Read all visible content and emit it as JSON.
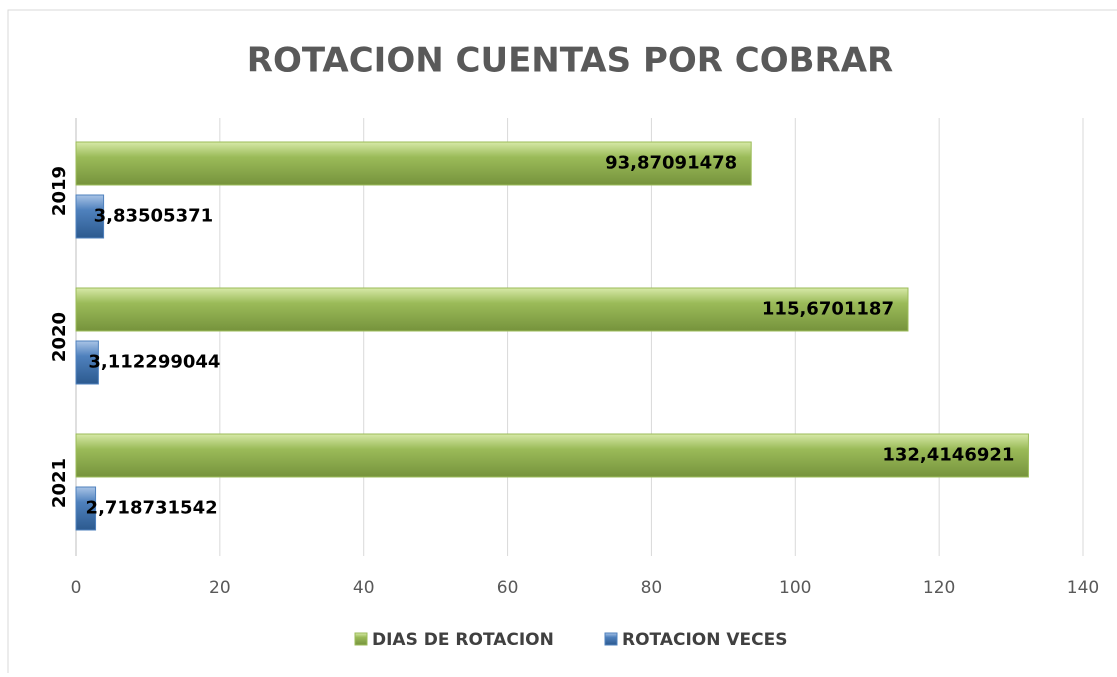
{
  "chart_data": {
    "type": "bar",
    "orientation": "horizontal",
    "title": "ROTACION CUENTAS POR COBRAR",
    "categories": [
      "2019",
      "2020",
      "2021"
    ],
    "series": [
      {
        "name": "DIAS DE ROTACION",
        "color": "#9bbb59",
        "values": [
          93.87091478,
          115.6701187,
          132.4146921
        ],
        "value_labels": [
          "93,87091478",
          "115,6701187",
          "132,4146921"
        ]
      },
      {
        "name": "ROTACION VECES",
        "color": "#4f81bd",
        "values": [
          3.83505371,
          3.112299044,
          2.718731542
        ],
        "value_labels": [
          "3,83505371",
          "3,112299044",
          "2,718731542"
        ]
      }
    ],
    "xlim": [
      0,
      140
    ],
    "xticks": [
      0,
      20,
      40,
      60,
      80,
      100,
      120,
      140
    ],
    "grid": true,
    "legend": "bottom"
  }
}
